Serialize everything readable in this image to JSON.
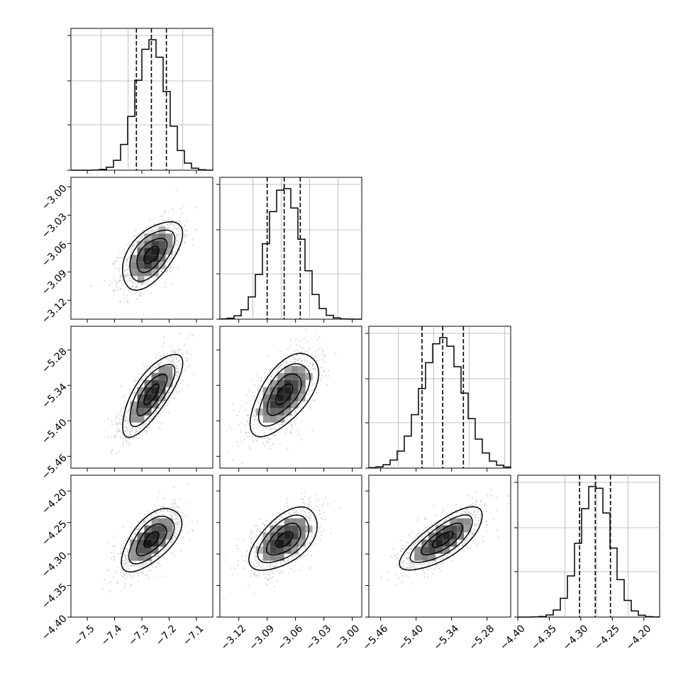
{
  "chart_data": {
    "type": "corner",
    "description_of_layout": "lower-triangular grid of 1D histograms (diagonal) and 2D density/contour panels",
    "parameters": [
      {
        "key": "p0",
        "xlim": [
          -7.56,
          -7.04
        ],
        "axis_ticks": [
          -7.5,
          -7.4,
          -7.3,
          -7.2,
          -7.1
        ],
        "axis_tick_labels": [
          "−7.5",
          "−7.4",
          "−7.3",
          "−7.2",
          "−7.1"
        ],
        "mean": -7.265,
        "sigma": 0.055,
        "quantiles": [
          -7.32,
          -7.265,
          -7.21
        ],
        "hist_gridlines": [
          -7.45,
          -7.35,
          -7.15
        ]
      },
      {
        "key": "p1",
        "xlim": [
          -3.14,
          -2.99
        ],
        "axis_ticks": [
          -3.12,
          -3.09,
          -3.06,
          -3.03,
          -3.0
        ],
        "axis_tick_labels": [
          "−3.12",
          "−3.09",
          "−3.06",
          "−3.03",
          "−3.00"
        ],
        "mean": -3.072,
        "sigma": 0.018,
        "quantiles": [
          -3.09,
          -3.072,
          -3.055
        ],
        "hist_gridlines": [
          -3.105,
          -3.075,
          -3.045,
          -3.015
        ]
      },
      {
        "key": "p2",
        "xlim": [
          -5.48,
          -5.24
        ],
        "axis_ticks": [
          -5.46,
          -5.4,
          -5.34,
          -5.28
        ],
        "axis_tick_labels": [
          "−5.46",
          "−5.40",
          "−5.34",
          "−5.28"
        ],
        "mean": -5.355,
        "sigma": 0.035,
        "quantiles": [
          -5.39,
          -5.355,
          -5.32
        ],
        "hist_gridlines": [
          -5.43,
          -5.37,
          -5.31,
          -5.25
        ]
      },
      {
        "key": "p3",
        "xlim": [
          -4.4,
          -4.175
        ],
        "axis_ticks": [
          -4.4,
          -4.35,
          -4.3,
          -4.25,
          -4.2
        ],
        "axis_tick_labels": [
          "−4.40",
          "−4.35",
          "−4.30",
          "−4.25",
          "−4.20"
        ],
        "mean": -4.277,
        "sigma": 0.025,
        "quantiles": [
          -4.302,
          -4.277,
          -4.253
        ],
        "hist_gridlines": [
          -4.325,
          -4.275,
          -4.225
        ]
      }
    ],
    "correlations": {
      "1,0": 0.55,
      "2,0": 0.75,
      "2,1": 0.6,
      "3,0": 0.6,
      "3,1": 0.55,
      "3,2": 0.75
    },
    "contour_sigma_levels": [
      0.5,
      1.0,
      1.5,
      2.0
    ],
    "line_color": "#000000",
    "grid_color": "#b0b0b0",
    "scatter_color": "#9a9a9a"
  }
}
